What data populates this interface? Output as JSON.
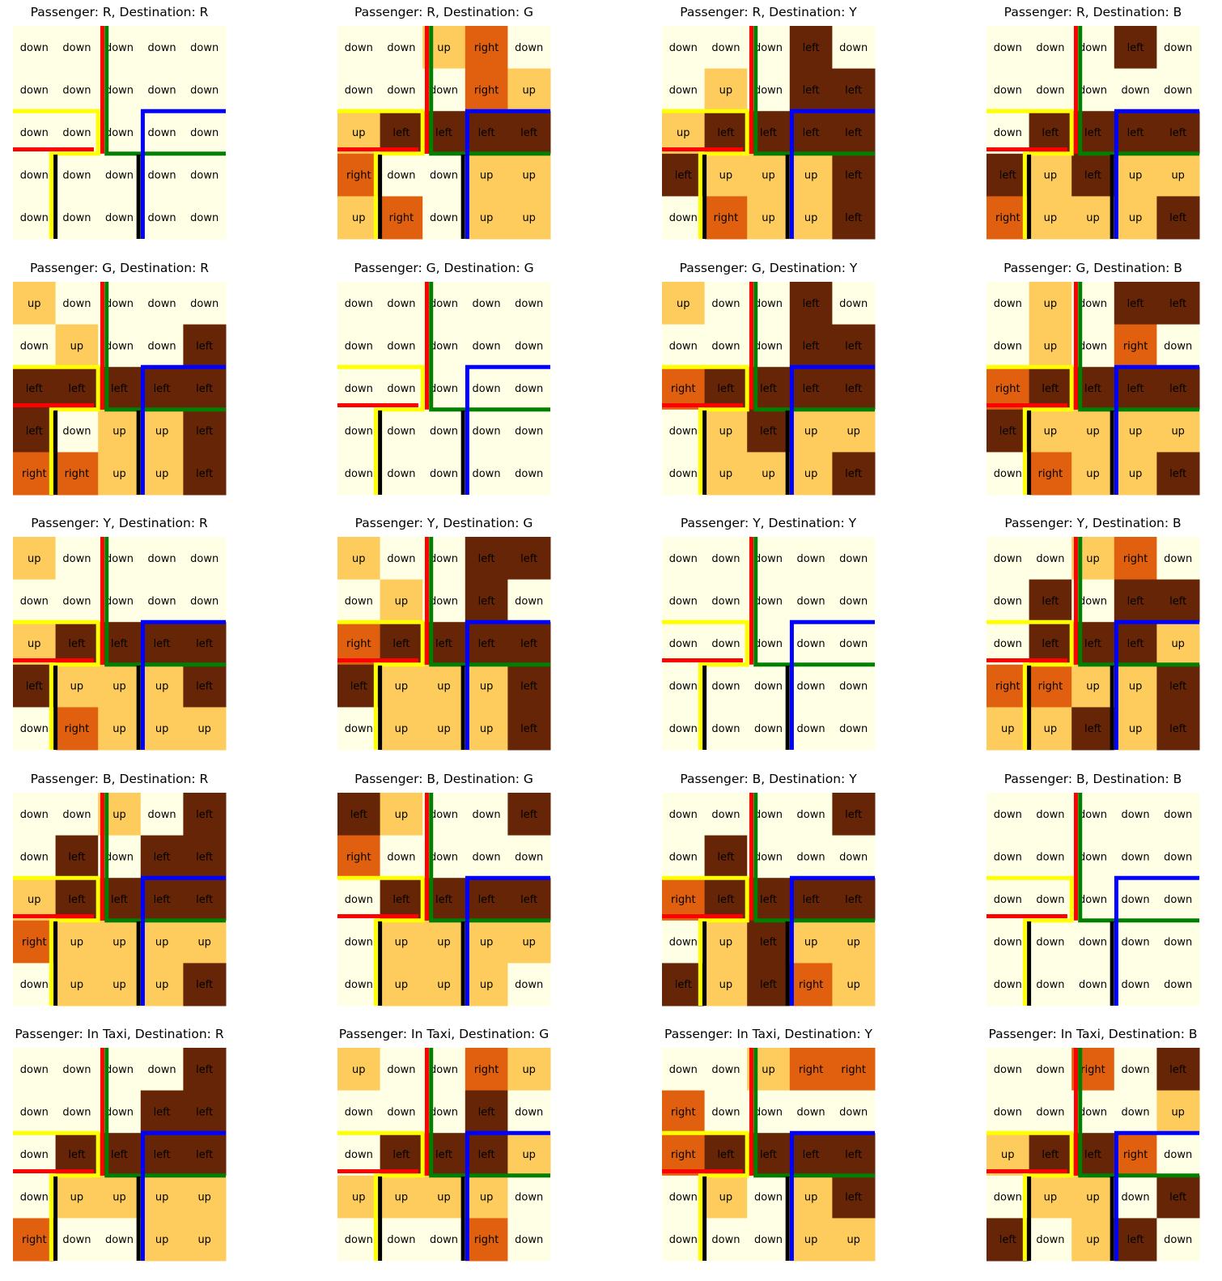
{
  "figure": {
    "action_colors": {
      "down": "#FFFFE5",
      "up": "#FECC5C",
      "right": "#E06010",
      "left": "#662506"
    },
    "barrier_colors": {
      "red": "#FF0000",
      "green": "#008000",
      "yellow": "#FFFF00",
      "blue": "#0000FF",
      "black": "#000000"
    }
  },
  "chart_data": [
    {
      "type": "heatmap",
      "title": "Passenger: R, Destination: R",
      "grid": [
        [
          "down",
          "down",
          "down",
          "down",
          "down"
        ],
        [
          "down",
          "down",
          "down",
          "down",
          "down"
        ],
        [
          "down",
          "down",
          "down",
          "down",
          "down"
        ],
        [
          "down",
          "down",
          "down",
          "down",
          "down"
        ],
        [
          "down",
          "down",
          "down",
          "down",
          "down"
        ]
      ]
    },
    {
      "type": "heatmap",
      "title": "Passenger: R, Destination: G",
      "grid": [
        [
          "down",
          "down",
          "up",
          "right",
          "down"
        ],
        [
          "down",
          "down",
          "down",
          "right",
          "up"
        ],
        [
          "up",
          "left",
          "left",
          "left",
          "left"
        ],
        [
          "right",
          "down",
          "down",
          "up",
          "up"
        ],
        [
          "up",
          "right",
          "down",
          "up",
          "up"
        ]
      ]
    },
    {
      "type": "heatmap",
      "title": "Passenger: R, Destination: Y",
      "grid": [
        [
          "down",
          "down",
          "down",
          "left",
          "down"
        ],
        [
          "down",
          "up",
          "down",
          "left",
          "left"
        ],
        [
          "up",
          "left",
          "left",
          "left",
          "left"
        ],
        [
          "left",
          "up",
          "up",
          "up",
          "left"
        ],
        [
          "down",
          "right",
          "up",
          "up",
          "left"
        ]
      ]
    },
    {
      "type": "heatmap",
      "title": "Passenger: R, Destination: B",
      "grid": [
        [
          "down",
          "down",
          "down",
          "left",
          "down"
        ],
        [
          "down",
          "down",
          "down",
          "down",
          "down"
        ],
        [
          "down",
          "left",
          "left",
          "left",
          "left"
        ],
        [
          "left",
          "up",
          "left",
          "up",
          "up"
        ],
        [
          "right",
          "up",
          "up",
          "up",
          "left"
        ]
      ]
    },
    {
      "type": "heatmap",
      "title": "Passenger: G, Destination: R",
      "grid": [
        [
          "up",
          "down",
          "down",
          "down",
          "down"
        ],
        [
          "down",
          "up",
          "down",
          "down",
          "left"
        ],
        [
          "left",
          "left",
          "left",
          "left",
          "left"
        ],
        [
          "left",
          "down",
          "up",
          "up",
          "left"
        ],
        [
          "right",
          "right",
          "up",
          "up",
          "left"
        ]
      ]
    },
    {
      "type": "heatmap",
      "title": "Passenger: G, Destination: G",
      "grid": [
        [
          "down",
          "down",
          "down",
          "down",
          "down"
        ],
        [
          "down",
          "down",
          "down",
          "down",
          "down"
        ],
        [
          "down",
          "down",
          "down",
          "down",
          "down"
        ],
        [
          "down",
          "down",
          "down",
          "down",
          "down"
        ],
        [
          "down",
          "down",
          "down",
          "down",
          "down"
        ]
      ]
    },
    {
      "type": "heatmap",
      "title": "Passenger: G, Destination: Y",
      "grid": [
        [
          "up",
          "down",
          "down",
          "left",
          "down"
        ],
        [
          "down",
          "down",
          "down",
          "left",
          "left"
        ],
        [
          "right",
          "left",
          "left",
          "left",
          "left"
        ],
        [
          "down",
          "up",
          "left",
          "up",
          "up"
        ],
        [
          "down",
          "up",
          "up",
          "up",
          "left"
        ]
      ]
    },
    {
      "type": "heatmap",
      "title": "Passenger: G, Destination: B",
      "grid": [
        [
          "down",
          "up",
          "down",
          "left",
          "left"
        ],
        [
          "down",
          "up",
          "down",
          "right",
          "down"
        ],
        [
          "right",
          "left",
          "left",
          "left",
          "left"
        ],
        [
          "left",
          "up",
          "up",
          "up",
          "up"
        ],
        [
          "down",
          "right",
          "up",
          "up",
          "left"
        ]
      ]
    },
    {
      "type": "heatmap",
      "title": "Passenger: Y, Destination: R",
      "grid": [
        [
          "up",
          "down",
          "down",
          "down",
          "down"
        ],
        [
          "down",
          "down",
          "down",
          "down",
          "down"
        ],
        [
          "up",
          "left",
          "left",
          "left",
          "left"
        ],
        [
          "left",
          "up",
          "up",
          "up",
          "left"
        ],
        [
          "down",
          "right",
          "up",
          "up",
          "up"
        ]
      ]
    },
    {
      "type": "heatmap",
      "title": "Passenger: Y, Destination: G",
      "grid": [
        [
          "up",
          "down",
          "down",
          "left",
          "left"
        ],
        [
          "down",
          "up",
          "down",
          "left",
          "down"
        ],
        [
          "right",
          "left",
          "left",
          "left",
          "left"
        ],
        [
          "left",
          "up",
          "up",
          "up",
          "left"
        ],
        [
          "down",
          "up",
          "up",
          "up",
          "left"
        ]
      ]
    },
    {
      "type": "heatmap",
      "title": "Passenger: Y, Destination: Y",
      "grid": [
        [
          "down",
          "down",
          "down",
          "down",
          "down"
        ],
        [
          "down",
          "down",
          "down",
          "down",
          "down"
        ],
        [
          "down",
          "down",
          "down",
          "down",
          "down"
        ],
        [
          "down",
          "down",
          "down",
          "down",
          "down"
        ],
        [
          "down",
          "down",
          "down",
          "down",
          "down"
        ]
      ]
    },
    {
      "type": "heatmap",
      "title": "Passenger: Y, Destination: B",
      "grid": [
        [
          "down",
          "down",
          "up",
          "right",
          "down"
        ],
        [
          "down",
          "left",
          "down",
          "left",
          "left"
        ],
        [
          "down",
          "left",
          "left",
          "left",
          "up"
        ],
        [
          "right",
          "right",
          "up",
          "up",
          "left"
        ],
        [
          "up",
          "up",
          "left",
          "up",
          "left"
        ]
      ]
    },
    {
      "type": "heatmap",
      "title": "Passenger: B, Destination: R",
      "grid": [
        [
          "down",
          "down",
          "up",
          "down",
          "left"
        ],
        [
          "down",
          "left",
          "down",
          "left",
          "left"
        ],
        [
          "up",
          "left",
          "left",
          "left",
          "left"
        ],
        [
          "right",
          "up",
          "up",
          "up",
          "up"
        ],
        [
          "down",
          "up",
          "up",
          "up",
          "left"
        ]
      ]
    },
    {
      "type": "heatmap",
      "title": "Passenger: B, Destination: G",
      "grid": [
        [
          "left",
          "up",
          "down",
          "down",
          "left"
        ],
        [
          "right",
          "down",
          "down",
          "down",
          "down"
        ],
        [
          "down",
          "left",
          "left",
          "left",
          "left"
        ],
        [
          "down",
          "up",
          "up",
          "up",
          "up"
        ],
        [
          "down",
          "up",
          "up",
          "up",
          "down"
        ]
      ]
    },
    {
      "type": "heatmap",
      "title": "Passenger: B, Destination: Y",
      "grid": [
        [
          "down",
          "down",
          "down",
          "down",
          "left"
        ],
        [
          "down",
          "left",
          "down",
          "down",
          "down"
        ],
        [
          "right",
          "left",
          "left",
          "left",
          "left"
        ],
        [
          "down",
          "up",
          "left",
          "up",
          "up"
        ],
        [
          "left",
          "up",
          "left",
          "right",
          "up"
        ]
      ]
    },
    {
      "type": "heatmap",
      "title": "Passenger: B, Destination: B",
      "grid": [
        [
          "down",
          "down",
          "down",
          "down",
          "down"
        ],
        [
          "down",
          "down",
          "down",
          "down",
          "down"
        ],
        [
          "down",
          "down",
          "down",
          "down",
          "down"
        ],
        [
          "down",
          "down",
          "down",
          "down",
          "down"
        ],
        [
          "down",
          "down",
          "down",
          "down",
          "down"
        ]
      ]
    },
    {
      "type": "heatmap",
      "title": "Passenger: In Taxi, Destination: R",
      "grid": [
        [
          "down",
          "down",
          "down",
          "down",
          "left"
        ],
        [
          "down",
          "down",
          "down",
          "left",
          "left"
        ],
        [
          "down",
          "left",
          "left",
          "left",
          "left"
        ],
        [
          "down",
          "up",
          "up",
          "up",
          "up"
        ],
        [
          "right",
          "down",
          "down",
          "up",
          "up"
        ]
      ]
    },
    {
      "type": "heatmap",
      "title": "Passenger: In Taxi, Destination: G",
      "grid": [
        [
          "up",
          "down",
          "down",
          "right",
          "up"
        ],
        [
          "down",
          "down",
          "down",
          "left",
          "down"
        ],
        [
          "down",
          "left",
          "left",
          "left",
          "up"
        ],
        [
          "up",
          "up",
          "up",
          "up",
          "down"
        ],
        [
          "down",
          "down",
          "down",
          "right",
          "down"
        ]
      ]
    },
    {
      "type": "heatmap",
      "title": "Passenger: In Taxi, Destination: Y",
      "grid": [
        [
          "down",
          "down",
          "up",
          "right",
          "right"
        ],
        [
          "right",
          "down",
          "down",
          "down",
          "down"
        ],
        [
          "right",
          "left",
          "left",
          "left",
          "left"
        ],
        [
          "down",
          "up",
          "down",
          "up",
          "left"
        ],
        [
          "down",
          "down",
          "down",
          "up",
          "up"
        ]
      ]
    },
    {
      "type": "heatmap",
      "title": "Passenger: In Taxi, Destination: B",
      "grid": [
        [
          "down",
          "down",
          "right",
          "down",
          "left"
        ],
        [
          "down",
          "down",
          "down",
          "down",
          "up"
        ],
        [
          "up",
          "left",
          "left",
          "right",
          "down"
        ],
        [
          "down",
          "up",
          "up",
          "down",
          "left"
        ],
        [
          "left",
          "down",
          "up",
          "left",
          "down"
        ]
      ]
    }
  ]
}
